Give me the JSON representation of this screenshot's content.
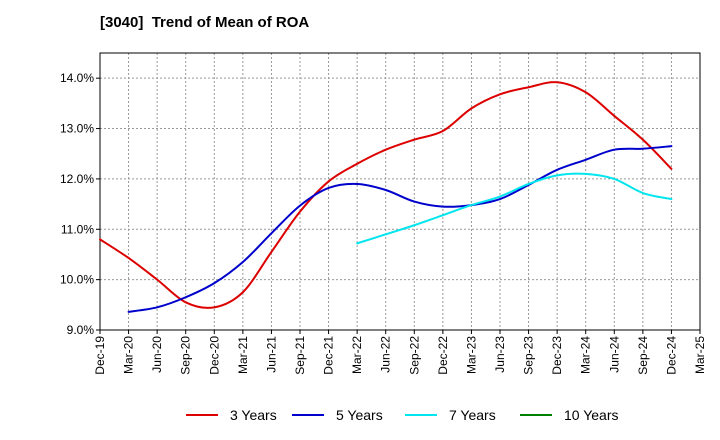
{
  "chart_data": {
    "type": "line",
    "title": "[3040]  Trend of Mean of ROA",
    "xlabel": "",
    "ylabel": "",
    "ylim": [
      9.0,
      14.5
    ],
    "yticks": [
      "9.0%",
      "10.0%",
      "11.0%",
      "12.0%",
      "13.0%",
      "14.0%"
    ],
    "ytick_values": [
      9.0,
      10.0,
      11.0,
      12.0,
      13.0,
      14.0
    ],
    "x_categories": [
      "Dec-19",
      "Mar-20",
      "Jun-20",
      "Sep-20",
      "Dec-20",
      "Mar-21",
      "Jun-21",
      "Sep-21",
      "Dec-21",
      "Mar-22",
      "Jun-22",
      "Sep-22",
      "Dec-22",
      "Mar-23",
      "Jun-23",
      "Sep-23",
      "Dec-23",
      "Mar-24",
      "Jun-24",
      "Sep-24",
      "Dec-24",
      "Mar-25"
    ],
    "grid": true,
    "legend_position": "bottom",
    "series": [
      {
        "name": "3 Years",
        "color": "#dd0000",
        "values": [
          10.8,
          10.43,
          10.0,
          9.55,
          9.45,
          9.75,
          10.55,
          11.35,
          11.95,
          12.3,
          12.58,
          12.78,
          12.95,
          13.4,
          13.68,
          13.82,
          13.92,
          13.72,
          13.25,
          12.78,
          12.2,
          null
        ]
      },
      {
        "name": "5 Years",
        "color": "#0000cc",
        "values": [
          null,
          9.36,
          9.45,
          9.65,
          9.93,
          10.35,
          10.92,
          11.47,
          11.82,
          11.9,
          11.78,
          11.55,
          11.45,
          11.48,
          11.6,
          11.88,
          12.18,
          12.38,
          12.58,
          12.6,
          12.65,
          null
        ]
      },
      {
        "name": "7 Years",
        "color": "#00e5ee",
        "values": [
          null,
          null,
          null,
          null,
          null,
          null,
          null,
          null,
          null,
          10.72,
          10.9,
          11.08,
          11.28,
          11.48,
          11.65,
          11.9,
          12.07,
          12.1,
          12.0,
          11.72,
          11.6,
          null
        ]
      },
      {
        "name": "10 Years",
        "color": "#008000",
        "values": [
          null,
          null,
          null,
          null,
          null,
          null,
          null,
          null,
          null,
          null,
          null,
          null,
          null,
          null,
          null,
          null,
          null,
          null,
          null,
          null,
          null,
          null
        ]
      }
    ]
  }
}
